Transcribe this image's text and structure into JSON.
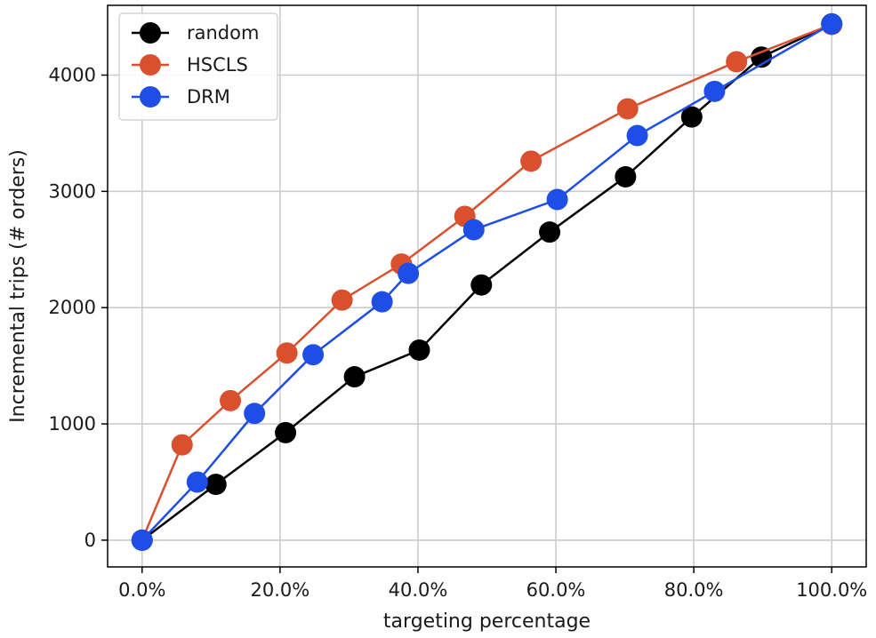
{
  "chart_data": {
    "type": "line",
    "xlabel": "targeting percentage",
    "ylabel": "Incremental trips (# orders)",
    "xlim": [
      -0.05,
      1.05
    ],
    "ylim": [
      -230,
      4600
    ],
    "xticks": [
      0,
      0.2,
      0.4,
      0.6,
      0.8,
      1.0
    ],
    "xtick_labels": [
      "0.0%",
      "20.0%",
      "40.0%",
      "60.0%",
      "80.0%",
      "100.0%"
    ],
    "yticks": [
      0,
      1000,
      2000,
      3000,
      4000
    ],
    "ytick_labels": [
      "0",
      "1000",
      "2000",
      "3000",
      "4000"
    ],
    "grid": true,
    "legend_position": "top-left",
    "series": [
      {
        "name": "random",
        "color": "#000000",
        "x": [
          0.0,
          0.107,
          0.208,
          0.308,
          0.402,
          0.492,
          0.591,
          0.701,
          0.797,
          0.898,
          1.0
        ],
        "y": [
          0,
          480,
          925,
          1405,
          1635,
          2195,
          2650,
          3125,
          3640,
          4155,
          4440
        ]
      },
      {
        "name": "HSCLS",
        "color": "#d9502f",
        "x": [
          0.0,
          0.058,
          0.128,
          0.21,
          0.29,
          0.376,
          0.468,
          0.564,
          0.704,
          0.862,
          1.0
        ],
        "y": [
          0,
          820,
          1200,
          1610,
          2065,
          2375,
          2785,
          3260,
          3710,
          4115,
          4435
        ]
      },
      {
        "name": "DRM",
        "color": "#1f4ee6",
        "x": [
          0.0,
          0.08,
          0.163,
          0.248,
          0.348,
          0.386,
          0.481,
          0.602,
          0.718,
          0.83,
          1.0
        ],
        "y": [
          0,
          500,
          1090,
          1595,
          2050,
          2295,
          2670,
          2930,
          3480,
          3860,
          4440
        ]
      }
    ]
  }
}
